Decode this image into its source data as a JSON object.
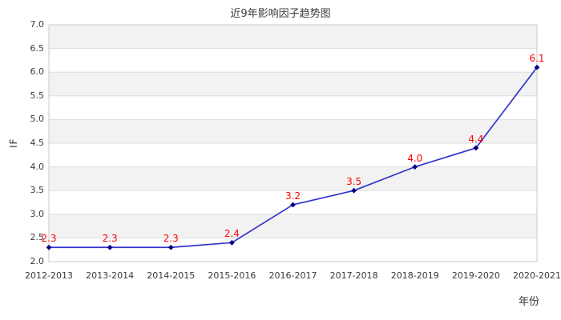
{
  "chart_data": {
    "type": "line",
    "title": "近9年影响因子趋势图",
    "xlabel": "年份",
    "ylabel": "IF",
    "categories": [
      "2012-2013",
      "2013-2014",
      "2014-2015",
      "2015-2016",
      "2016-2017",
      "2017-2018",
      "2018-2019",
      "2019-2020",
      "2020-2021"
    ],
    "series": [
      {
        "name": "IF",
        "values": [
          2.3,
          2.3,
          2.3,
          2.4,
          3.2,
          3.5,
          4.0,
          4.4,
          6.1
        ],
        "point_labels": [
          "2.3",
          "2.3",
          "2.3",
          "2.4",
          "3.2",
          "3.5",
          "4.0",
          "4.4",
          "6.1"
        ]
      }
    ],
    "ylim": [
      2.0,
      7.0
    ],
    "ytick_step": 0.5,
    "yticks": [
      "7.0",
      "6.5",
      "6.0",
      "5.5",
      "5.0",
      "4.5",
      "4.0",
      "3.5",
      "3.0",
      "2.5",
      "2.0"
    ],
    "grid": "horizontal-with-alternating-bands",
    "legend": "none",
    "marker_shape": "diamond",
    "colors": {
      "line": "#3232cd",
      "marker": "#000080",
      "point_label": "#ff0000",
      "band": "#f2f2f2",
      "gridline": "#dedede",
      "plot_border": "#c8c8c8",
      "text": "#3a3a3a",
      "background": "#ffffff"
    }
  }
}
